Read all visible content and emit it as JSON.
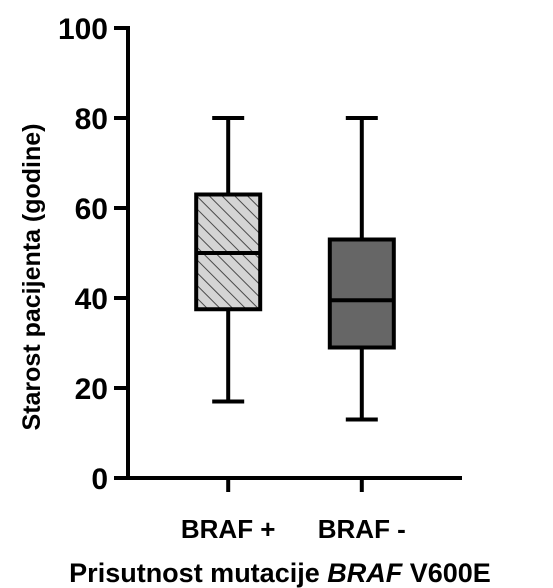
{
  "chart_data": {
    "type": "box",
    "title": "",
    "xlabel_parts": [
      {
        "text": "Prisutnost mutacije ",
        "italic": false
      },
      {
        "text": "BRAF",
        "italic": true
      },
      {
        "text": " V600E",
        "italic": false
      }
    ],
    "ylabel": "Starost pacijenta (godine)",
    "ylim": [
      0,
      100
    ],
    "yticks": [
      0,
      20,
      40,
      60,
      80,
      100
    ],
    "yticklabels": [
      "0",
      "20",
      "40",
      "60",
      "80",
      "100"
    ],
    "grid": false,
    "legend": "none",
    "series": [
      {
        "category": "BRAF +",
        "min": 17,
        "q1": 37.5,
        "median": 50,
        "q3": 63,
        "max": 80,
        "fill": "hatched",
        "color": "#d4d4d4"
      },
      {
        "category": "BRAF -",
        "min": 13,
        "q1": 29,
        "median": 39.5,
        "q3": 53,
        "max": 80,
        "fill": "solid",
        "color": "#666666"
      }
    ]
  }
}
